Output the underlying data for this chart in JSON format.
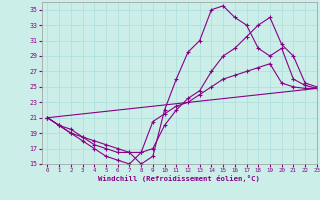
{
  "xlabel": "Windchill (Refroidissement éolien,°C)",
  "background_color": "#cceee8",
  "grid_color": "#aadddd",
  "line_color": "#880088",
  "xlim": [
    -0.5,
    23
  ],
  "ylim": [
    15,
    36
  ],
  "yticks": [
    15,
    17,
    19,
    21,
    23,
    25,
    27,
    29,
    31,
    33,
    35
  ],
  "xticks": [
    0,
    1,
    2,
    3,
    4,
    5,
    6,
    7,
    8,
    9,
    10,
    11,
    12,
    13,
    14,
    15,
    16,
    17,
    18,
    19,
    20,
    21,
    22,
    23
  ],
  "line1_x": [
    0,
    1,
    2,
    3,
    4,
    5,
    6,
    7,
    8,
    9,
    10,
    11,
    12,
    13,
    14,
    15,
    16,
    17,
    18,
    19,
    20,
    21,
    22,
    23
  ],
  "line1_y": [
    21,
    20,
    19,
    18,
    17,
    16,
    15.5,
    15,
    16.5,
    20.5,
    21.5,
    22.5,
    23,
    24,
    25,
    26,
    26.5,
    27,
    27.5,
    28,
    25.5,
    25,
    24.8,
    24.8
  ],
  "line2_x": [
    0,
    1,
    2,
    3,
    4,
    5,
    6,
    7,
    8,
    9,
    10,
    11,
    12,
    13,
    14,
    15,
    16,
    17,
    18,
    19,
    20,
    21,
    22,
    23
  ],
  "line2_y": [
    21,
    20,
    19,
    18.5,
    18,
    17.5,
    17,
    16.5,
    15,
    16,
    22,
    26,
    29.5,
    31,
    35,
    35.5,
    34,
    33,
    30,
    29,
    30,
    26,
    25.2,
    24.8
  ],
  "line3_x": [
    0,
    1,
    2,
    3,
    4,
    5,
    6,
    7,
    8,
    9,
    10,
    11,
    12,
    13,
    14,
    15,
    16,
    17,
    18,
    19,
    20,
    21,
    22,
    23
  ],
  "line3_y": [
    21,
    20,
    19.5,
    18.5,
    17.5,
    17,
    16.5,
    16.5,
    16.5,
    17,
    20,
    22,
    23.5,
    24.5,
    27,
    29,
    30,
    31.5,
    33,
    34,
    30.5,
    29,
    25.5,
    25
  ],
  "line4_x": [
    0,
    23
  ],
  "line4_y": [
    21,
    24.8
  ]
}
